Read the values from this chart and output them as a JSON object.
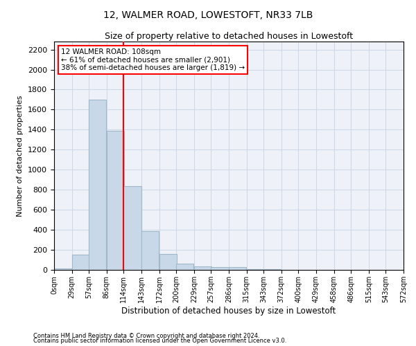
{
  "title": "12, WALMER ROAD, LOWESTOFT, NR33 7LB",
  "subtitle": "Size of property relative to detached houses in Lowestoft",
  "xlabel": "Distribution of detached houses by size in Lowestoft",
  "ylabel": "Number of detached properties",
  "property_label": "12 WALMER ROAD: 108sqm",
  "annotation_line1": "← 61% of detached houses are smaller (2,901)",
  "annotation_line2": "38% of semi-detached houses are larger (1,819) →",
  "footer1": "Contains HM Land Registry data © Crown copyright and database right 2024.",
  "footer2": "Contains public sector information licensed under the Open Government Licence v3.0.",
  "bar_left_edges": [
    0,
    29,
    57,
    86,
    114,
    143,
    172,
    200,
    229,
    257,
    286,
    315,
    343,
    372,
    400,
    429,
    458,
    486,
    515,
    543
  ],
  "bar_heights": [
    15,
    155,
    1700,
    1390,
    835,
    385,
    160,
    65,
    38,
    28,
    28,
    5,
    5,
    0,
    0,
    0,
    0,
    0,
    0,
    0
  ],
  "bin_width": 28.5,
  "bar_color": "#c8d8e8",
  "bar_edge_color": "#a0b8cc",
  "vline_x": 114,
  "vline_color": "red",
  "ylim": [
    0,
    2280
  ],
  "xlim": [
    0,
    572
  ],
  "yticks": [
    0,
    200,
    400,
    600,
    800,
    1000,
    1200,
    1400,
    1600,
    1800,
    2000,
    2200
  ],
  "xtick_labels": [
    "0sqm",
    "29sqm",
    "57sqm",
    "86sqm",
    "114sqm",
    "143sqm",
    "172sqm",
    "200sqm",
    "229sqm",
    "257sqm",
    "286sqm",
    "315sqm",
    "343sqm",
    "372sqm",
    "400sqm",
    "429sqm",
    "458sqm",
    "486sqm",
    "515sqm",
    "543sqm",
    "572sqm"
  ],
  "xtick_positions": [
    0,
    29,
    57,
    86,
    114,
    143,
    172,
    200,
    229,
    257,
    286,
    315,
    343,
    372,
    400,
    429,
    458,
    486,
    515,
    543,
    572
  ],
  "grid_color": "#d0d8e8",
  "background_color": "#eef2f8",
  "annotation_box_color": "white",
  "annotation_box_edge": "red",
  "title_fontsize": 10,
  "subtitle_fontsize": 9,
  "xlabel_fontsize": 8.5,
  "ylabel_fontsize": 8,
  "tick_fontsize_y": 8,
  "tick_fontsize_x": 7,
  "annotation_fontsize": 7.5,
  "footer_fontsize": 6
}
